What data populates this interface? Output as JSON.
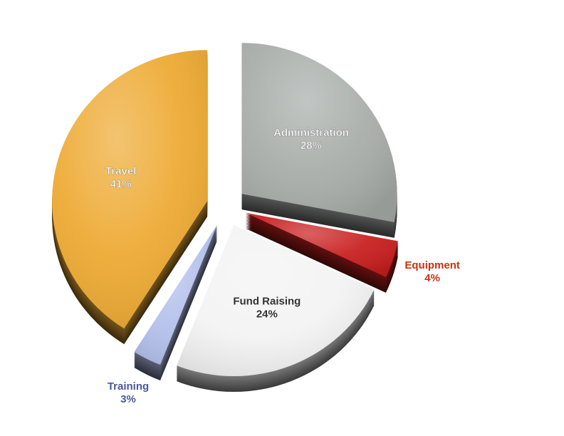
{
  "chart_data": {
    "type": "pie",
    "title": "",
    "style": "3d-exploded",
    "legend": "none",
    "slices": [
      {
        "label": "Administration",
        "value": 28,
        "value_label": "28%",
        "color": "#a7aca9",
        "label_color": "#ffffff",
        "label_position": "inside",
        "exploded": true
      },
      {
        "label": "Equipment",
        "value": 4,
        "value_label": "4%",
        "color": "#c81e1e",
        "label_color": "#c8320f",
        "label_position": "outside",
        "exploded": true
      },
      {
        "label": "Fund Raising",
        "value": 24,
        "value_label": "24%",
        "color": "#f3f3f3",
        "label_color": "#333333",
        "label_position": "inside",
        "exploded": true
      },
      {
        "label": "Training",
        "value": 3,
        "value_label": "3%",
        "color": "#b4c0ec",
        "label_color": "#4a5a9a",
        "label_position": "outside",
        "exploded": true
      },
      {
        "label": "Travel",
        "value": 41,
        "value_label": "41%",
        "color": "#eeaa33",
        "label_color": "#ffffff",
        "label_position": "inside",
        "exploded": true
      }
    ]
  }
}
